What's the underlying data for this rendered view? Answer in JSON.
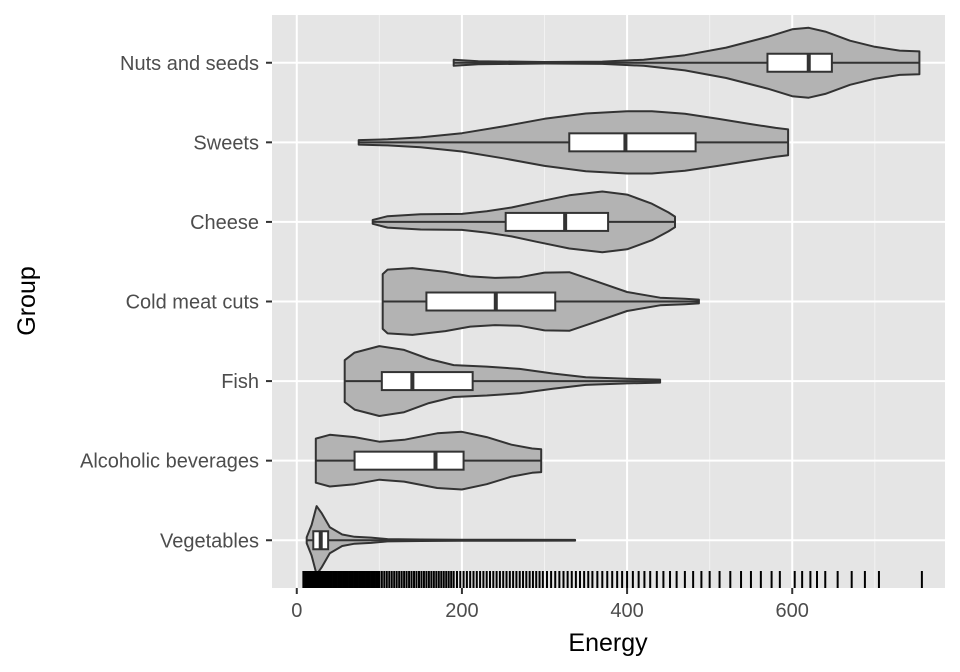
{
  "chart_data": {
    "type": "violin",
    "title": "",
    "xlabel": "Energy",
    "ylabel": "Group",
    "xlim": [
      -30,
      785
    ],
    "x_ticks": [
      0,
      200,
      400,
      600
    ],
    "x_tick_labels": [
      "0",
      "200",
      "400",
      "600"
    ],
    "grid": true,
    "legend": "none",
    "categories": [
      "Vegetables",
      "Alcoholic beverages",
      "Fish",
      "Cold meat cuts",
      "Cheese",
      "Sweets",
      "Nuts and seeds"
    ],
    "colors": {
      "panel_background": "#e5e5e5",
      "grid_major": "#ffffff",
      "grid_minor": "#f2f2f2",
      "violin_fill": "#b3b3b3",
      "violin_stroke": "#333333",
      "box_fill": "#ffffff",
      "rug": "#000000"
    },
    "series": [
      {
        "group": "Nuts and seeds",
        "min": 190,
        "max": 754,
        "box": {
          "q1": 570,
          "median": 620,
          "q3": 648
        },
        "density": [
          [
            190,
            0.08
          ],
          [
            220,
            0.04
          ],
          [
            300,
            0.02
          ],
          [
            370,
            0.03
          ],
          [
            420,
            0.08
          ],
          [
            470,
            0.2
          ],
          [
            520,
            0.4
          ],
          [
            570,
            0.68
          ],
          [
            600,
            0.88
          ],
          [
            620,
            0.92
          ],
          [
            640,
            0.82
          ],
          [
            670,
            0.58
          ],
          [
            700,
            0.42
          ],
          [
            730,
            0.32
          ],
          [
            754,
            0.3
          ]
        ]
      },
      {
        "group": "Sweets",
        "min": 75,
        "max": 595,
        "box": {
          "q1": 330,
          "median": 398,
          "q3": 483
        },
        "density": [
          [
            75,
            0.06
          ],
          [
            110,
            0.08
          ],
          [
            150,
            0.13
          ],
          [
            200,
            0.24
          ],
          [
            250,
            0.42
          ],
          [
            300,
            0.62
          ],
          [
            350,
            0.76
          ],
          [
            400,
            0.82
          ],
          [
            430,
            0.82
          ],
          [
            470,
            0.75
          ],
          [
            510,
            0.62
          ],
          [
            550,
            0.48
          ],
          [
            580,
            0.38
          ],
          [
            595,
            0.34
          ]
        ]
      },
      {
        "group": "Cheese",
        "min": 92,
        "max": 458,
        "box": {
          "q1": 253,
          "median": 325,
          "q3": 377
        },
        "density": [
          [
            92,
            0.05
          ],
          [
            110,
            0.15
          ],
          [
            150,
            0.2
          ],
          [
            200,
            0.21
          ],
          [
            230,
            0.28
          ],
          [
            260,
            0.38
          ],
          [
            290,
            0.52
          ],
          [
            330,
            0.7
          ],
          [
            370,
            0.8
          ],
          [
            400,
            0.72
          ],
          [
            430,
            0.48
          ],
          [
            450,
            0.25
          ],
          [
            458,
            0.14
          ]
        ]
      },
      {
        "group": "Cold meat cuts",
        "min": 104,
        "max": 487,
        "box": {
          "q1": 157,
          "median": 241,
          "q3": 313
        },
        "density": [
          [
            104,
            0.72
          ],
          [
            110,
            0.84
          ],
          [
            140,
            0.88
          ],
          [
            180,
            0.78
          ],
          [
            210,
            0.66
          ],
          [
            240,
            0.62
          ],
          [
            270,
            0.64
          ],
          [
            300,
            0.76
          ],
          [
            330,
            0.77
          ],
          [
            360,
            0.55
          ],
          [
            400,
            0.25
          ],
          [
            440,
            0.1
          ],
          [
            470,
            0.07
          ],
          [
            487,
            0.05
          ]
        ]
      },
      {
        "group": "Fish",
        "min": 58,
        "max": 440,
        "box": {
          "q1": 103,
          "median": 140,
          "q3": 213
        },
        "density": [
          [
            58,
            0.55
          ],
          [
            70,
            0.75
          ],
          [
            100,
            0.92
          ],
          [
            130,
            0.82
          ],
          [
            160,
            0.58
          ],
          [
            190,
            0.42
          ],
          [
            230,
            0.38
          ],
          [
            270,
            0.32
          ],
          [
            310,
            0.2
          ],
          [
            350,
            0.1
          ],
          [
            400,
            0.06
          ],
          [
            440,
            0.04
          ]
        ]
      },
      {
        "group": "Alcoholic beverages",
        "min": 23,
        "max": 296,
        "box": {
          "q1": 70,
          "median": 168,
          "q3": 202
        },
        "density": [
          [
            23,
            0.58
          ],
          [
            40,
            0.68
          ],
          [
            70,
            0.62
          ],
          [
            100,
            0.5
          ],
          [
            130,
            0.55
          ],
          [
            170,
            0.72
          ],
          [
            200,
            0.76
          ],
          [
            230,
            0.62
          ],
          [
            260,
            0.42
          ],
          [
            285,
            0.32
          ],
          [
            296,
            0.3
          ]
        ]
      },
      {
        "group": "Vegetables",
        "min": 12,
        "max": 337,
        "box": {
          "q1": 20,
          "median": 29,
          "q3": 38
        },
        "density": [
          [
            12,
            0.08
          ],
          [
            18,
            0.4
          ],
          [
            24,
            0.9
          ],
          [
            30,
            0.72
          ],
          [
            40,
            0.34
          ],
          [
            55,
            0.15
          ],
          [
            70,
            0.09
          ],
          [
            90,
            0.07
          ],
          [
            110,
            0.03
          ],
          [
            150,
            0.02
          ],
          [
            200,
            0.015
          ],
          [
            260,
            0.012
          ],
          [
            337,
            0.008
          ]
        ]
      }
    ],
    "rug_values": [
      8,
      10,
      11,
      12,
      13,
      14,
      15,
      16,
      17,
      18,
      19,
      20,
      21,
      22,
      23,
      24,
      25,
      26,
      27,
      28,
      29,
      30,
      31,
      32,
      33,
      34,
      35,
      36,
      37,
      38,
      39,
      40,
      42,
      44,
      46,
      48,
      50,
      52,
      54,
      56,
      58,
      60,
      62,
      64,
      66,
      68,
      70,
      72,
      74,
      76,
      78,
      80,
      82,
      84,
      86,
      88,
      90,
      92,
      94,
      96,
      98,
      100,
      103,
      106,
      109,
      112,
      115,
      118,
      121,
      124,
      127,
      130,
      133,
      136,
      139,
      142,
      145,
      148,
      151,
      154,
      157,
      160,
      163,
      166,
      169,
      172,
      175,
      178,
      181,
      184,
      187,
      190,
      194,
      198,
      202,
      206,
      210,
      214,
      218,
      222,
      226,
      230,
      234,
      238,
      242,
      246,
      250,
      254,
      258,
      262,
      266,
      270,
      274,
      278,
      282,
      286,
      290,
      294,
      298,
      303,
      308,
      313,
      318,
      323,
      328,
      333,
      338,
      343,
      348,
      353,
      358,
      364,
      370,
      376,
      382,
      388,
      394,
      400,
      407,
      414,
      421,
      428,
      436,
      444,
      452,
      460,
      470,
      480,
      490,
      500,
      512,
      525,
      538,
      550,
      562,
      575,
      585,
      603,
      612,
      622,
      630,
      640,
      655,
      672,
      688,
      705,
      757
    ]
  }
}
